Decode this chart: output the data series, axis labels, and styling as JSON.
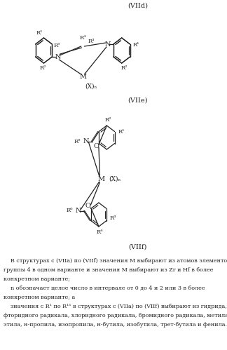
{
  "background_color": "#ffffff",
  "label_viid": "(VIId)",
  "label_viie": "(VIIe)",
  "label_viif": "(VIIf)",
  "text_lines": [
    "    В структурах с (VIIa) по (VIIf) значения M выбирают из атомов элементов",
    "группы 4 в одном варианте и значения M выбирают из Zr и Hf в более",
    "конкретном варианте;",
    "    n обозначает целое число в интервале от 0 до 4 и 2 или 3 в более",
    "конкретном варианте; а",
    "    значения с R¹ по R¹¹ в структурах с (VIIa) по (VIIf) выбирают из гидрида,",
    "фторидного радикала, хлоридного радикала, бромидного радикала, метила,",
    "этила, н-пропила, изопропила, н-бутила, изобутила, трет-бутила и фенила."
  ]
}
